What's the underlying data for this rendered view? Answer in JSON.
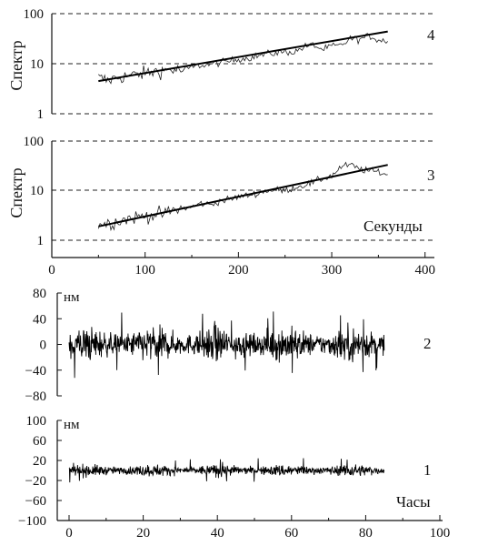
{
  "chart_data": [
    {
      "id": "panel4",
      "type": "line",
      "panel_label": "4",
      "ylabel": "Спектр",
      "yscale": "log",
      "ylim": [
        1,
        100
      ],
      "yticks": [
        "1",
        "10",
        "100"
      ],
      "xlim": [
        0,
        410
      ],
      "grid": "horizontal dashed at 1, 10, 100",
      "series": [
        {
          "style": "noisy-thin",
          "x": [
            50,
            60,
            70,
            80,
            90,
            100,
            110,
            120,
            130,
            140,
            150,
            160,
            170,
            180,
            190,
            200,
            210,
            220,
            230,
            240,
            250,
            260,
            270,
            280,
            290,
            300,
            310,
            320,
            330,
            340,
            350,
            360
          ],
          "y": [
            5.2,
            4.6,
            5.3,
            5.6,
            6.0,
            6.4,
            7.0,
            7.3,
            7.6,
            7.2,
            8.6,
            9.3,
            9.7,
            10.5,
            11.2,
            12.5,
            12.9,
            14.2,
            15.6,
            16.3,
            17.4,
            17.0,
            21.5,
            24.0,
            19.0,
            22.5,
            23.0,
            32.0,
            30.5,
            36.0,
            30.0,
            28.0
          ]
        },
        {
          "style": "fit-thick",
          "x": [
            50,
            360
          ],
          "y": [
            4.5,
            44
          ]
        }
      ]
    },
    {
      "id": "panel3",
      "type": "line",
      "panel_label": "3",
      "ylabel": "Спектр",
      "xlabel": "Секунды",
      "yscale": "log",
      "ylim": [
        1,
        100
      ],
      "yticks": [
        "1",
        "10",
        "100"
      ],
      "xlim": [
        0,
        410
      ],
      "xticks": [
        "0",
        "100",
        "200",
        "300",
        "400"
      ],
      "grid": "horizontal dashed at 1, 10, 100",
      "series": [
        {
          "style": "noisy-thin",
          "x": [
            50,
            60,
            70,
            80,
            90,
            100,
            110,
            120,
            130,
            140,
            150,
            160,
            170,
            180,
            190,
            200,
            210,
            220,
            230,
            240,
            250,
            260,
            270,
            280,
            290,
            300,
            310,
            320,
            330,
            340,
            350,
            360
          ],
          "y": [
            2.1,
            2.2,
            2.4,
            2.7,
            2.9,
            3.1,
            3.3,
            3.4,
            4.0,
            4.4,
            4.6,
            5.6,
            5.2,
            6.2,
            6.6,
            7.5,
            8.0,
            8.8,
            10.0,
            10.3,
            10.0,
            11.5,
            13.0,
            14.5,
            17.5,
            20.0,
            30.0,
            33.0,
            27.0,
            25.0,
            24.0,
            21.0
          ]
        },
        {
          "style": "fit-thick",
          "x": [
            50,
            360
          ],
          "y": [
            1.9,
            33
          ]
        }
      ]
    },
    {
      "id": "panel2",
      "type": "line",
      "panel_label": "2",
      "unit": "нм",
      "ylim": [
        -80,
        80
      ],
      "yticks": [
        "80",
        "40",
        "0",
        "−40",
        "−80"
      ],
      "xlim": [
        0,
        100
      ],
      "series": [
        {
          "style": "dense-noise",
          "x_range": [
            0,
            85
          ],
          "center": 0,
          "band_amplitude": 22,
          "max_spike": 55
        }
      ]
    },
    {
      "id": "panel1",
      "type": "line",
      "panel_label": "1",
      "unit": "нм",
      "xlabel": "Часы",
      "ylim": [
        -100,
        100
      ],
      "yticks": [
        "100",
        "60",
        "20",
        "−20",
        "−60",
        "−100"
      ],
      "xlim": [
        0,
        100
      ],
      "xticks": [
        "0",
        "20",
        "40",
        "60",
        "80",
        "100"
      ],
      "series": [
        {
          "style": "dense-noise",
          "x_range": [
            0,
            85
          ],
          "center": 0,
          "band_amplitude": 10,
          "max_spike": 25
        }
      ]
    }
  ]
}
